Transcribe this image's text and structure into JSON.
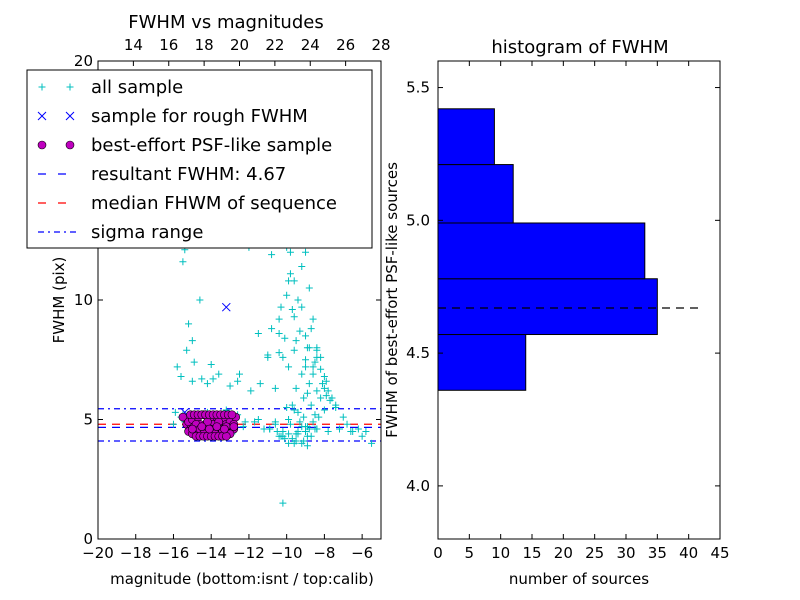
{
  "chart_data": [
    {
      "type": "scatter",
      "title": "FWHM vs magnitudes",
      "xlabel": "magnitude (bottom:isnt / top:calib)",
      "ylabel": "FWHM (pix)",
      "xlim": [
        -20,
        -5
      ],
      "ylim": [
        0,
        20
      ],
      "x_ticks": [
        -20,
        -18,
        -16,
        -14,
        -12,
        -10,
        -8,
        -6
      ],
      "x_tick_labels": [
        "−20",
        "−18",
        "−16",
        "−14",
        "−12",
        "−10",
        "−8",
        "−6"
      ],
      "y_ticks": [
        0,
        5,
        10,
        20
      ],
      "y_tick_labels": [
        "0",
        "5",
        "10",
        "20"
      ],
      "top_axis": {
        "lim": [
          12,
          28
        ],
        "ticks": [
          14,
          16,
          18,
          20,
          22,
          24,
          26,
          28
        ],
        "tick_labels": [
          "14",
          "16",
          "18",
          "20",
          "22",
          "24",
          "26",
          "28"
        ]
      },
      "grid": false,
      "legend_position": "upper-left",
      "series": [
        {
          "name": "all sample",
          "marker": "plus",
          "color": "#00bfbf",
          "x": [
            -15.6,
            -15.3,
            -15.2,
            -15.0,
            -15.4,
            -14.6,
            -14.8,
            -15.8,
            -15.5,
            -15.0,
            -14.9,
            -14.5,
            -13.9,
            -14.2,
            -14.0,
            -13.6,
            -13.0,
            -12.6,
            -12.5,
            -11.9,
            -11.4,
            -11.0,
            -10.6,
            -10.4,
            -10.2,
            -10.0,
            -9.8,
            -9.6,
            -9.5,
            -9.2,
            -9.0,
            -8.8,
            -8.6,
            -8.4,
            -8.2,
            -8.0,
            -7.8,
            -7.6,
            -7.4,
            -7.0,
            -6.8,
            -6.5,
            -6.0,
            -5.5,
            -11.5,
            -11.0,
            -10.8,
            -10.4,
            -10.3,
            -10.0,
            -9.9,
            -9.7,
            -9.6,
            -9.4,
            -9.2,
            -9.0,
            -8.9,
            -8.7,
            -8.5,
            -8.4,
            -8.2,
            -8.0,
            -7.9,
            -7.6,
            -7.4,
            -10.4,
            -10.1,
            -9.9,
            -9.6,
            -9.3,
            -9.0,
            -8.8,
            -8.6,
            -8.4,
            -8.1,
            -7.9,
            -7.7,
            -9.5,
            -9.2,
            -9.0,
            -8.8,
            -8.6,
            -8.4,
            -8.2,
            -8.0,
            -9.7,
            -9.4,
            -9.1,
            -8.9,
            -8.7,
            -8.5,
            -8.3,
            -9.9,
            -9.6,
            -9.3,
            -9.1,
            -8.9,
            -8.6,
            -8.4,
            -10.2,
            -9.8,
            -9.5,
            -9.2,
            -9.0,
            -8.7,
            -8.5,
            -10.6,
            -9.7,
            -9.4,
            -9.1,
            -8.8,
            -10.3,
            -9.9,
            -9.5,
            -9.2,
            -8.9,
            -15.9,
            -15.6,
            -15.2,
            -15.5,
            -16.0,
            -15.4,
            -14.8,
            -14.2,
            -13.5,
            -13.2,
            -12.6,
            -12.2,
            -13.0,
            -12.9,
            -11.7,
            -11.5,
            -10.6,
            -10.4,
            -10.9,
            -10.1,
            -10.9,
            -9.9,
            -9.4,
            -10.2,
            -9.0,
            -8.9,
            -9.6,
            -12.0,
            -11.2,
            -10.8,
            -10.5,
            -10.0,
            -9.8,
            -15.0,
            -14.0,
            -13.0,
            -12.3,
            -11.2,
            -10.5,
            -9.0,
            -8.4,
            -7.8,
            -7.2,
            -6.6,
            -6.2,
            -5.8,
            -10.2
          ],
          "y": [
            6.8,
            7.9,
            9.0,
            8.3,
            12.1,
            10.0,
            12.4,
            7.2,
            11.6,
            6.6,
            7.4,
            6.7,
            6.7,
            6.5,
            7.3,
            6.9,
            6.4,
            6.6,
            6.9,
            6.2,
            6.5,
            7.6,
            6.3,
            8.6,
            7.6,
            5.5,
            12.0,
            10.8,
            8.3,
            11.4,
            12.0,
            10.5,
            9.2,
            8.0,
            7.6,
            6.8,
            6.2,
            5.9,
            5.6,
            5.1,
            4.8,
            4.5,
            4.3,
            4.0,
            8.6,
            7.7,
            8.8,
            9.2,
            9.7,
            10.2,
            10.8,
            9.6,
            9.3,
            10.0,
            9.7,
            8.5,
            8.0,
            8.8,
            7.4,
            7.9,
            7.1,
            6.3,
            6.6,
            5.9,
            5.5,
            7.8,
            8.4,
            7.2,
            7.9,
            8.7,
            7.5,
            8.0,
            7.2,
            7.6,
            6.5,
            6.0,
            5.8,
            6.3,
            6.9,
            7.2,
            6.5,
            6.9,
            6.2,
            5.9,
            5.4,
            5.6,
            5.3,
            5.9,
            6.1,
            5.6,
            5.2,
            5.1,
            5.0,
            5.4,
            4.9,
            5.1,
            4.7,
            4.9,
            4.6,
            4.5,
            4.8,
            4.4,
            4.7,
            4.5,
            4.3,
            4.6,
            4.9,
            4.2,
            4.5,
            4.1,
            4.6,
            4.3,
            4.4,
            4.1,
            4.0,
            4.3,
            5.3,
            5.1,
            5.0,
            5.2,
            4.8,
            4.9,
            5.0,
            5.3,
            4.7,
            5.4,
            5.2,
            4.9,
            4.8,
            4.4,
            4.9,
            5.0,
            4.8,
            4.3,
            4.6,
            4.2,
            4.6,
            4.0,
            4.4,
            4.3,
            4.5,
            3.9,
            4.0,
            12.2,
            12.7,
            11.9,
            12.3,
            12.2,
            11.1,
            4.6,
            4.7,
            4.6,
            4.7,
            4.6,
            4.5,
            4.7,
            4.6,
            4.5,
            4.6,
            4.5,
            4.6,
            4.5,
            1.5
          ]
        },
        {
          "name": "sample for rough FWHM",
          "marker": "x",
          "color": "#0000ff",
          "x": [
            -13.2,
            -15.4,
            -14.5,
            -13.4,
            -14.9,
            -13.0
          ],
          "y": [
            9.7,
            5.3,
            4.7,
            4.6,
            4.8,
            4.9
          ]
        },
        {
          "name": "best-effort PSF-like sample",
          "marker": "circle",
          "color": "#bf00bf",
          "x": [
            -15.5,
            -15.3,
            -15.2,
            -15.1,
            -15.0,
            -14.9,
            -14.8,
            -14.7,
            -14.6,
            -14.5,
            -14.4,
            -14.3,
            -14.2,
            -14.1,
            -14.0,
            -13.9,
            -13.8,
            -13.7,
            -13.6,
            -13.5,
            -13.4,
            -13.3,
            -13.2,
            -13.1,
            -13.0,
            -12.9,
            -12.8,
            -12.7,
            -15.2,
            -15.0,
            -14.8,
            -14.6,
            -14.4,
            -14.2,
            -14.0,
            -13.8,
            -13.6,
            -13.4,
            -13.2,
            -13.0,
            -12.8,
            -15.1,
            -14.9,
            -14.7,
            -14.5,
            -14.3,
            -14.1,
            -13.9,
            -13.7,
            -13.5,
            -13.3,
            -13.1,
            -12.9,
            -14.8,
            -14.6,
            -14.4,
            -14.2,
            -14.0,
            -13.8,
            -13.6,
            -13.4,
            -13.2,
            -15.0,
            -14.5,
            -14.1,
            -13.7,
            -13.3,
            -12.8
          ],
          "y": [
            5.1,
            4.8,
            4.9,
            4.6,
            5.0,
            4.7,
            4.5,
            5.1,
            4.8,
            4.6,
            5.2,
            4.7,
            4.9,
            4.5,
            5.0,
            4.8,
            4.6,
            5.1,
            4.7,
            4.9,
            4.6,
            5.0,
            4.8,
            4.5,
            4.9,
            4.7,
            4.6,
            5.1,
            4.5,
            4.4,
            4.8,
            4.6,
            4.4,
            4.9,
            4.6,
            4.4,
            4.9,
            4.5,
            4.7,
            4.4,
            4.8,
            5.2,
            5.2,
            5.2,
            5.2,
            5.2,
            5.2,
            5.2,
            5.2,
            5.2,
            5.2,
            5.2,
            5.2,
            4.3,
            4.3,
            4.3,
            4.3,
            4.3,
            4.3,
            4.3,
            4.3,
            4.3,
            4.6,
            4.7,
            4.6,
            4.7,
            4.6,
            4.7
          ]
        }
      ],
      "hlines": [
        {
          "name": "resultant FWHM: 4.67",
          "y": 4.67,
          "style": "dashed",
          "color": "#0000ff"
        },
        {
          "name": "median FHWM of sequence",
          "y": 4.8,
          "style": "dashed",
          "color": "#ff0000"
        },
        {
          "name": "sigma range",
          "y": 5.45,
          "style": "dashdot",
          "color": "#0000ff"
        },
        {
          "name": "sigma range",
          "y": 4.1,
          "style": "dashdot",
          "color": "#0000ff"
        }
      ]
    },
    {
      "type": "bar",
      "orientation": "horizontal",
      "title": "histogram of FWHM",
      "xlabel": "number of sources",
      "ylabel": "FWHM of best-effort PSF-like sources",
      "xlim": [
        0,
        45
      ],
      "ylim": [
        3.8,
        5.6
      ],
      "x_ticks": [
        0,
        5,
        10,
        15,
        20,
        25,
        30,
        35,
        40,
        45
      ],
      "x_tick_labels": [
        "0",
        "5",
        "10",
        "15",
        "20",
        "25",
        "30",
        "35",
        "40",
        "45"
      ],
      "y_ticks": [
        4.0,
        4.5,
        5.0,
        5.5
      ],
      "y_tick_labels": [
        "4.0",
        "4.5",
        "5.0",
        "5.5"
      ],
      "grid": false,
      "bar_color": "#0000ff",
      "bins": [
        {
          "y0": 4.36,
          "y1": 4.57,
          "count": 14
        },
        {
          "y0": 4.57,
          "y1": 4.78,
          "count": 35
        },
        {
          "y0": 4.78,
          "y1": 4.99,
          "count": 33
        },
        {
          "y0": 4.99,
          "y1": 5.21,
          "count": 12
        },
        {
          "y0": 5.21,
          "y1": 5.42,
          "count": 9
        }
      ],
      "hline": {
        "y": 4.67,
        "style": "dashed",
        "color": "#000000"
      }
    }
  ],
  "legend": {
    "items": [
      {
        "label": "all sample",
        "marker": "plus",
        "color": "#00bfbf"
      },
      {
        "label": "sample for rough FWHM",
        "marker": "x",
        "color": "#0000ff"
      },
      {
        "label": "best-effort PSF-like sample",
        "marker": "circle",
        "color": "#bf00bf"
      },
      {
        "label": "resultant FWHM: 4.67",
        "marker": "dashed",
        "color": "#0000ff"
      },
      {
        "label": "median FHWM of sequence",
        "marker": "dashed",
        "color": "#ff0000"
      },
      {
        "label": "sigma range",
        "marker": "dashdot",
        "color": "#0000ff"
      }
    ]
  }
}
